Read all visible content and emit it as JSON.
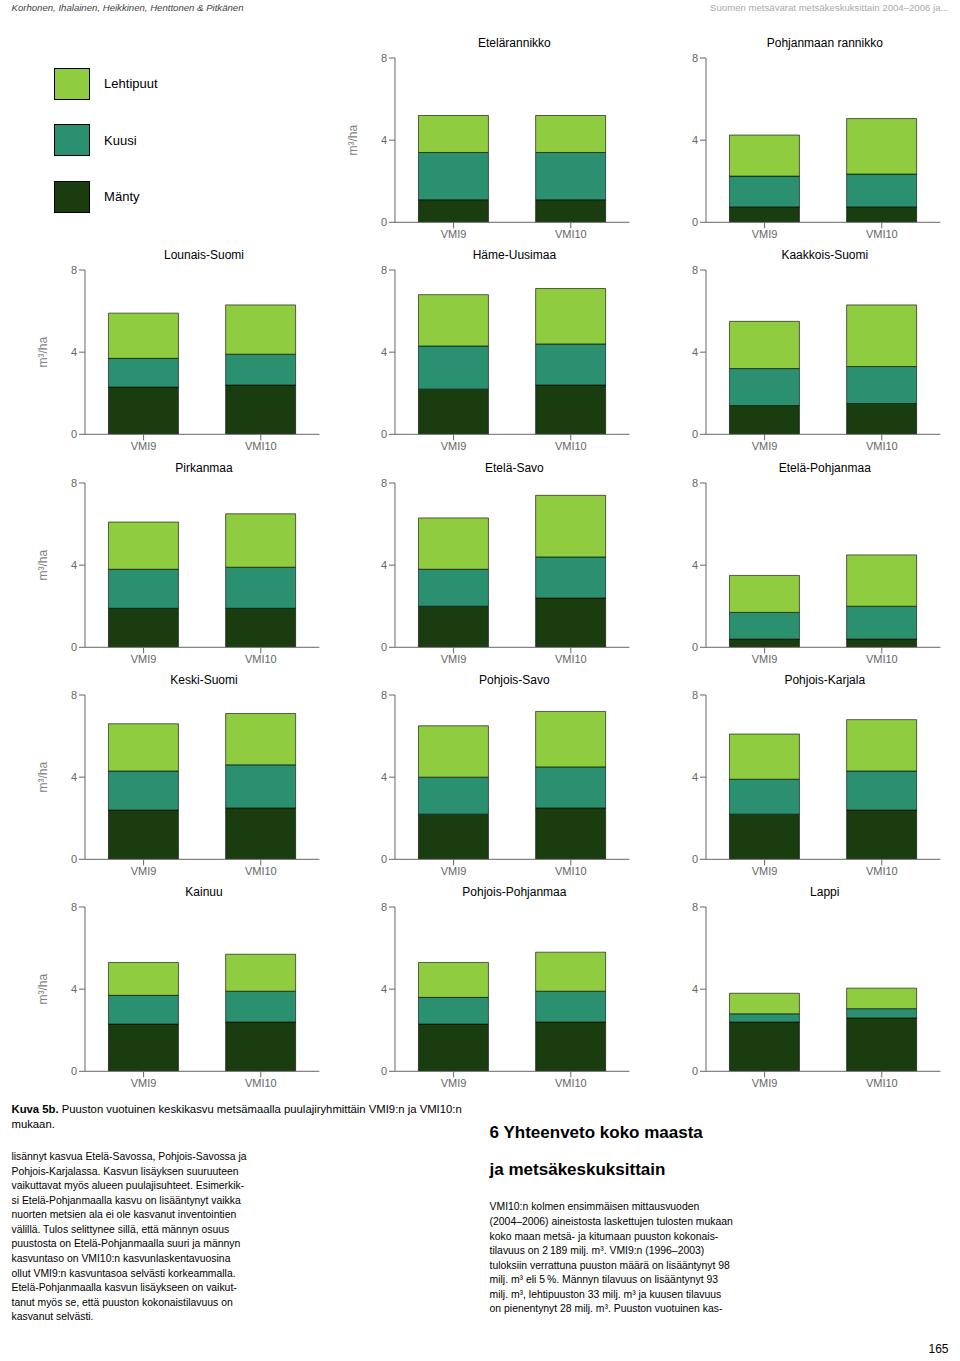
{
  "title": "Kuva 5b. Puuston vuotuinen keskikasvu metsämaalla puulajiryhmittäin VMI9:n ja VMI10:n\nmukaan.",
  "legend": "upper left",
  "annotations": [
    {
      "text": "Korhonen, Ihalainen, Heikkinen, Henttonen & Pitkänen"
    },
    {
      "text": "Suomen metsävarat metsäkeskuksittain 2004–2006 ja..."
    },
    {
      "text": "165"
    },
    {
      "text": "lisännyt kasvua Etelä-Savossa, Pohjois-Savossa ja\nPohjois-Karjalassa. Kasvun lisäyksen suuruuteen\nvaikuttavat myös alueen puulajisuhteet. Esimerkik-\nsi Etelä-Pohjanmaalla kasvu on lisääntynyt vaikka\nnuorten metsien ala ei ole kasvanut inventointien\nvälillä. Tulos selittynee sillä, että männyn osuus\npuustosta on Etelä-Pohjanmaalla suuri ja männyn\nkasvuntaso on VMI10:n kasvunlaskentavuosina\nollut VMI9:n kasvuntasoa selvästi korkeammalla.\nEtelä-Pohjanmaalla kasvun lisäykseen on vaikut-\ntanut myös se, että puuston kokonaistilavuus on\nkasvanut selvästi."
    },
    {
      "text": "6 Yhteenveto koko maasta"
    },
    {
      "text": "ja metsäkeskuksittain"
    },
    {
      "text": "VMI10:n kolmen ensimmäisen mittausvuoden\n(2004–2006) aineistosta laskettujen tulosten mukaan\nkoko maan metsä- ja kitumaan puuston kokonais-\ntilavuus on 2 189 milj. m³. VMI9:n (1996–2003)\ntuloksiin verrattuna puuston määrä on lisääntynyt 98\nmilj. m³ eli 5 %. Männyn tilavuus on lisääntynyt 93\nmilj. m³, lehtipuuston 33 milj. m³ ja kuusen tilavuus\non pienentynyt 28 milj. m³. Puuston vuotuinen kas-"
    }
  ],
  "chart_data": [
    {
      "type": "bar",
      "stacked": true,
      "grid": false,
      "title": "Etelärannikko",
      "ylabel": "m³/ha",
      "categories": [
        "VMI9",
        "VMI10"
      ],
      "ylim": [
        0,
        8
      ],
      "yticks": [
        0,
        4,
        8
      ],
      "series": [
        {
          "name": "Mänty",
          "color": "#1a3d0f",
          "values": [
            1.1,
            1.1
          ]
        },
        {
          "name": "Kuusi",
          "color": "#2a9070",
          "values": [
            2.3,
            2.3
          ]
        },
        {
          "name": "Lehtipuut",
          "color": "#90cc40",
          "values": [
            1.8,
            1.8
          ]
        }
      ]
    },
    {
      "type": "bar",
      "stacked": true,
      "grid": false,
      "title": "Pohjanmaan rannikko",
      "categories": [
        "VMI9",
        "VMI10"
      ],
      "ylim": [
        0,
        8
      ],
      "yticks": [
        0,
        4,
        8
      ],
      "series": [
        {
          "name": "Mänty",
          "color": "#1a3d0f",
          "values": [
            0.75,
            0.75
          ]
        },
        {
          "name": "Kuusi",
          "color": "#2a9070",
          "values": [
            1.5,
            1.6
          ]
        },
        {
          "name": "Lehtipuut",
          "color": "#90cc40",
          "values": [
            2.0,
            2.7
          ]
        }
      ]
    },
    {
      "type": "bar",
      "stacked": true,
      "grid": false,
      "title": "Lounais-Suomi",
      "ylabel": "m³/ha",
      "categories": [
        "VMI9",
        "VMI10"
      ],
      "ylim": [
        0,
        8
      ],
      "yticks": [
        0,
        4,
        8
      ],
      "series": [
        {
          "name": "Mänty",
          "color": "#1a3d0f",
          "values": [
            2.3,
            2.4
          ]
        },
        {
          "name": "Kuusi",
          "color": "#2a9070",
          "values": [
            1.4,
            1.5
          ]
        },
        {
          "name": "Lehtipuut",
          "color": "#90cc40",
          "values": [
            2.2,
            2.4
          ]
        }
      ]
    },
    {
      "type": "bar",
      "stacked": true,
      "grid": false,
      "title": "Häme-Uusimaa",
      "categories": [
        "VMI9",
        "VMI10"
      ],
      "ylim": [
        0,
        8
      ],
      "yticks": [
        0,
        4,
        8
      ],
      "series": [
        {
          "name": "Mänty",
          "color": "#1a3d0f",
          "values": [
            2.2,
            2.4
          ]
        },
        {
          "name": "Kuusi",
          "color": "#2a9070",
          "values": [
            2.1,
            2.0
          ]
        },
        {
          "name": "Lehtipuut",
          "color": "#90cc40",
          "values": [
            2.5,
            2.7
          ]
        }
      ]
    },
    {
      "type": "bar",
      "stacked": true,
      "grid": false,
      "title": "Kaakkois-Suomi",
      "categories": [
        "VMI9",
        "VMI10"
      ],
      "ylim": [
        0,
        8
      ],
      "yticks": [
        0,
        4,
        8
      ],
      "series": [
        {
          "name": "Mänty",
          "color": "#1a3d0f",
          "values": [
            1.4,
            1.5
          ]
        },
        {
          "name": "Kuusi",
          "color": "#2a9070",
          "values": [
            1.8,
            1.8
          ]
        },
        {
          "name": "Lehtipuut",
          "color": "#90cc40",
          "values": [
            2.3,
            3.0
          ]
        }
      ]
    },
    {
      "type": "bar",
      "stacked": true,
      "grid": false,
      "title": "Pirkanmaa",
      "ylabel": "m³/ha",
      "categories": [
        "VMI9",
        "VMI10"
      ],
      "ylim": [
        0,
        8
      ],
      "yticks": [
        0,
        4,
        8
      ],
      "series": [
        {
          "name": "Mänty",
          "color": "#1a3d0f",
          "values": [
            1.9,
            1.9
          ]
        },
        {
          "name": "Kuusi",
          "color": "#2a9070",
          "values": [
            1.9,
            2.0
          ]
        },
        {
          "name": "Lehtipuut",
          "color": "#90cc40",
          "values": [
            2.3,
            2.6
          ]
        }
      ]
    },
    {
      "type": "bar",
      "stacked": true,
      "grid": false,
      "title": "Etelä-Savo",
      "categories": [
        "VMI9",
        "VMI10"
      ],
      "ylim": [
        0,
        8
      ],
      "yticks": [
        0,
        4,
        8
      ],
      "series": [
        {
          "name": "Mänty",
          "color": "#1a3d0f",
          "values": [
            2.0,
            2.4
          ]
        },
        {
          "name": "Kuusi",
          "color": "#2a9070",
          "values": [
            1.8,
            2.0
          ]
        },
        {
          "name": "Lehtipuut",
          "color": "#90cc40",
          "values": [
            2.5,
            3.0
          ]
        }
      ]
    },
    {
      "type": "bar",
      "stacked": true,
      "grid": false,
      "title": "Etelä-Pohjanmaa",
      "categories": [
        "VMI9",
        "VMI10"
      ],
      "ylim": [
        0,
        8
      ],
      "yticks": [
        0,
        4,
        8
      ],
      "series": [
        {
          "name": "Mänty",
          "color": "#1a3d0f",
          "values": [
            0.4,
            0.4
          ]
        },
        {
          "name": "Kuusi",
          "color": "#2a9070",
          "values": [
            1.3,
            1.6
          ]
        },
        {
          "name": "Lehtipuut",
          "color": "#90cc40",
          "values": [
            1.8,
            2.5
          ]
        }
      ]
    },
    {
      "type": "bar",
      "stacked": true,
      "grid": false,
      "title": "Keski-Suomi",
      "ylabel": "m³/ha",
      "categories": [
        "VMI9",
        "VMI10"
      ],
      "ylim": [
        0,
        8
      ],
      "yticks": [
        0,
        4,
        8
      ],
      "series": [
        {
          "name": "Mänty",
          "color": "#1a3d0f",
          "values": [
            2.4,
            2.5
          ]
        },
        {
          "name": "Kuusi",
          "color": "#2a9070",
          "values": [
            1.9,
            2.1
          ]
        },
        {
          "name": "Lehtipuut",
          "color": "#90cc40",
          "values": [
            2.3,
            2.5
          ]
        }
      ]
    },
    {
      "type": "bar",
      "stacked": true,
      "grid": false,
      "title": "Pohjois-Savo",
      "categories": [
        "VMI9",
        "VMI10"
      ],
      "ylim": [
        0,
        8
      ],
      "yticks": [
        0,
        4,
        8
      ],
      "series": [
        {
          "name": "Mänty",
          "color": "#1a3d0f",
          "values": [
            2.2,
            2.5
          ]
        },
        {
          "name": "Kuusi",
          "color": "#2a9070",
          "values": [
            1.8,
            2.0
          ]
        },
        {
          "name": "Lehtipuut",
          "color": "#90cc40",
          "values": [
            2.5,
            2.7
          ]
        }
      ]
    },
    {
      "type": "bar",
      "stacked": true,
      "grid": false,
      "title": "Pohjois-Karjala",
      "categories": [
        "VMI9",
        "VMI10"
      ],
      "ylim": [
        0,
        8
      ],
      "yticks": [
        0,
        4,
        8
      ],
      "series": [
        {
          "name": "Mänty",
          "color": "#1a3d0f",
          "values": [
            2.2,
            2.4
          ]
        },
        {
          "name": "Kuusi",
          "color": "#2a9070",
          "values": [
            1.7,
            1.9
          ]
        },
        {
          "name": "Lehtipuut",
          "color": "#90cc40",
          "values": [
            2.2,
            2.5
          ]
        }
      ]
    },
    {
      "type": "bar",
      "stacked": true,
      "grid": false,
      "title": "Kainuu",
      "ylabel": "m³/ha",
      "categories": [
        "VMI9",
        "VMI10"
      ],
      "ylim": [
        0,
        8
      ],
      "yticks": [
        0,
        4,
        8
      ],
      "series": [
        {
          "name": "Mänty",
          "color": "#1a3d0f",
          "values": [
            2.3,
            2.4
          ]
        },
        {
          "name": "Kuusi",
          "color": "#2a9070",
          "values": [
            1.4,
            1.5
          ]
        },
        {
          "name": "Lehtipuut",
          "color": "#90cc40",
          "values": [
            1.6,
            1.8
          ]
        }
      ]
    },
    {
      "type": "bar",
      "stacked": true,
      "grid": false,
      "title": "Pohjois-Pohjanmaa",
      "categories": [
        "VMI9",
        "VMI10"
      ],
      "ylim": [
        0,
        8
      ],
      "yticks": [
        0,
        4,
        8
      ],
      "series": [
        {
          "name": "Mänty",
          "color": "#1a3d0f",
          "values": [
            2.3,
            2.4
          ]
        },
        {
          "name": "Kuusi",
          "color": "#2a9070",
          "values": [
            1.3,
            1.5
          ]
        },
        {
          "name": "Lehtipuut",
          "color": "#90cc40",
          "values": [
            1.7,
            1.9
          ]
        }
      ]
    },
    {
      "type": "bar",
      "stacked": true,
      "grid": false,
      "title": "Lappi",
      "categories": [
        "VMI9",
        "VMI10"
      ],
      "ylim": [
        0,
        8
      ],
      "yticks": [
        0,
        4,
        8
      ],
      "series": [
        {
          "name": "Mänty",
          "color": "#1a3d0f",
          "values": [
            2.4,
            2.6
          ]
        },
        {
          "name": "Kuusi",
          "color": "#2a9070",
          "values": [
            0.4,
            0.45
          ]
        },
        {
          "name": "Lehtipuut",
          "color": "#90cc40",
          "values": [
            1.0,
            1.0
          ]
        }
      ]
    }
  ]
}
